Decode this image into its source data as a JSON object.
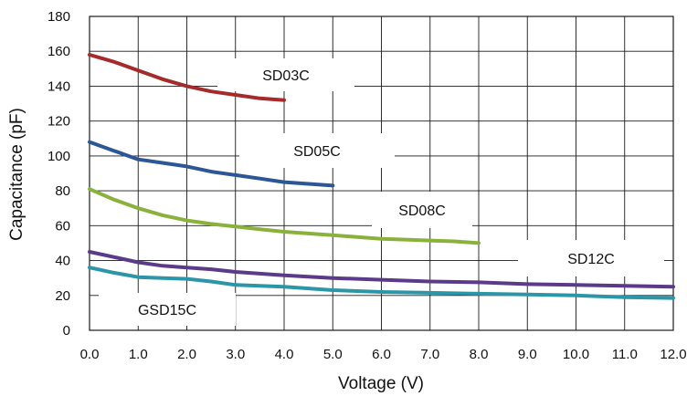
{
  "chart_data": {
    "type": "line",
    "title": "",
    "xlabel": "Voltage (V)",
    "ylabel": "Capacitance (pF)",
    "xlim": [
      0,
      12
    ],
    "ylim": [
      0,
      180
    ],
    "x_ticks": [
      "0.0",
      "1.0",
      "2.0",
      "3.0",
      "4.0",
      "5.0",
      "6.0",
      "7.0",
      "8.0",
      "9.0",
      "10.0",
      "11.0",
      "12.0"
    ],
    "y_ticks": [
      "0",
      "20",
      "40",
      "60",
      "80",
      "100",
      "120",
      "140",
      "160",
      "180"
    ],
    "grid": true,
    "legend": "inline labels beside each curve",
    "series": [
      {
        "name": "SD03C",
        "color": "#a52a2a",
        "x": [
          0,
          0.5,
          1,
          1.5,
          2,
          2.5,
          3,
          3.5,
          4
        ],
        "y": [
          158,
          154,
          149,
          144,
          140,
          137,
          135,
          133,
          132
        ]
      },
      {
        "name": "SD05C",
        "color": "#2b5797",
        "x": [
          0,
          0.5,
          1,
          1.5,
          2,
          2.5,
          3,
          3.5,
          4,
          4.5,
          5
        ],
        "y": [
          108,
          103,
          98,
          96,
          94,
          91,
          89,
          87,
          85,
          84,
          83
        ]
      },
      {
        "name": "SD08C",
        "color": "#8ab23a",
        "x": [
          0,
          0.5,
          1,
          1.5,
          2,
          2.5,
          3,
          3.5,
          4,
          4.5,
          5,
          5.5,
          6,
          6.5,
          7,
          7.5,
          8
        ],
        "y": [
          81,
          75,
          70,
          66,
          63,
          61,
          59.5,
          58,
          56.5,
          55.5,
          54.5,
          53.5,
          52.5,
          52,
          51.5,
          51,
          50
        ]
      },
      {
        "name": "SD12C",
        "color": "#5b3a8a",
        "x": [
          0,
          0.5,
          1,
          1.5,
          2,
          2.5,
          3,
          4,
          5,
          6,
          7,
          8,
          9,
          10,
          11,
          12
        ],
        "y": [
          45,
          42,
          39,
          37,
          36,
          35,
          33.5,
          31.5,
          30,
          29,
          28,
          27.5,
          26.5,
          26,
          25.5,
          25
        ]
      },
      {
        "name": "GSD15C",
        "color": "#2a96a8",
        "x": [
          0,
          0.5,
          1,
          1.5,
          2,
          2.5,
          3,
          4,
          5,
          6,
          7,
          8,
          9,
          10,
          11,
          12
        ],
        "y": [
          36,
          33,
          30.5,
          30,
          29.5,
          28,
          26,
          25,
          23,
          22,
          21.5,
          21,
          20.5,
          20,
          19,
          18.5
        ]
      }
    ]
  }
}
